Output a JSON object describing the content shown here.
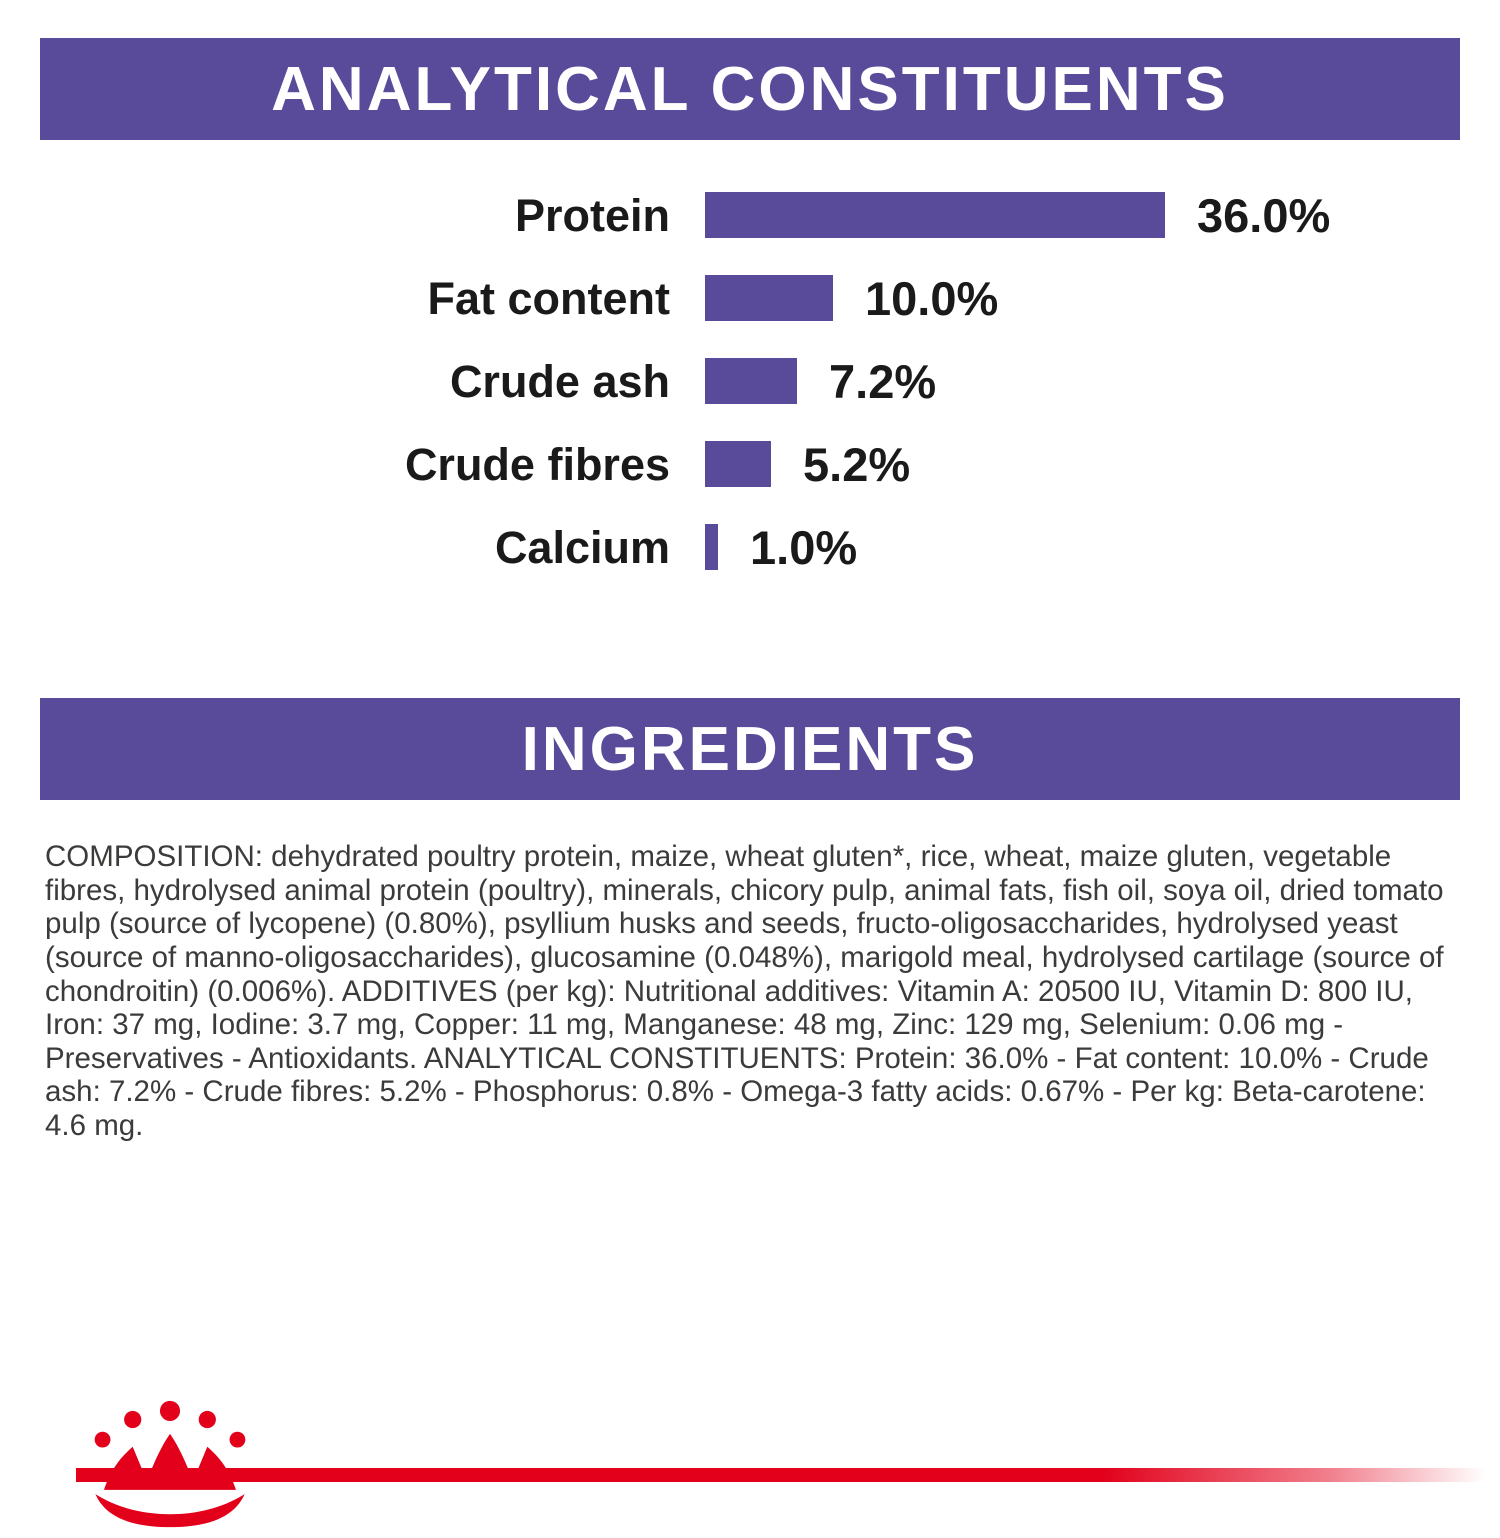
{
  "sections": {
    "analytical_title": "ANALYTICAL CONSTITUENTS",
    "ingredients_title": "INGREDIENTS"
  },
  "chart_data": {
    "type": "bar",
    "orientation": "horizontal",
    "title": "ANALYTICAL CONSTITUENTS",
    "categories": [
      "Protein",
      "Fat content",
      "Crude ash",
      "Crude fibres",
      "Calcium"
    ],
    "values": [
      36.0,
      10.0,
      7.2,
      5.2,
      1.0
    ],
    "value_labels": [
      "36.0%",
      "10.0%",
      "7.2%",
      "5.2%",
      "1.0%"
    ],
    "unit": "%",
    "xlim": [
      0,
      36
    ],
    "grid": false,
    "legend": "none",
    "bar_color": "#594a9a"
  },
  "ingredients": {
    "full_text": "COMPOSITION: dehydrated poultry protein, maize, wheat gluten*, rice, wheat, maize gluten, vegetable fibres, hydrolysed animal protein (poultry), minerals, chicory pulp, animal fats, fish oil, soya oil, dried tomato pulp (source of lycopene) (0.80%), psyllium husks and seeds, fructo-oligosaccharides, hydrolysed yeast (source of manno-oligosaccharides), glucosamine (0.048%), marigold meal, hydrolysed cartilage (source of chondroitin) (0.006%). ADDITIVES (per kg): Nutritional additives: Vitamin A: 20500 IU, Vitamin D: 800 IU, Iron: 37 mg, Iodine: 3.7 mg, Copper: 11 mg, Manganese: 48 mg, Zinc: 129 mg, Selenium: 0.06 mg - Preservatives - Antioxidants. ANALYTICAL CONSTITUENTS: Protein: 36.0% - Fat content: 10.0% - Crude ash: 7.2% - Crude fibres: 5.2% - Phosphorus: 0.8% - Omega-3 fatty acids: 0.67% - Per kg: Beta-carotene: 4.6 mg."
  },
  "colors": {
    "purple": "#594a9a",
    "red": "#e2001b",
    "body_text": "#3b3b3a"
  },
  "footer": {
    "logo": "royal-canin-crown-logo"
  }
}
